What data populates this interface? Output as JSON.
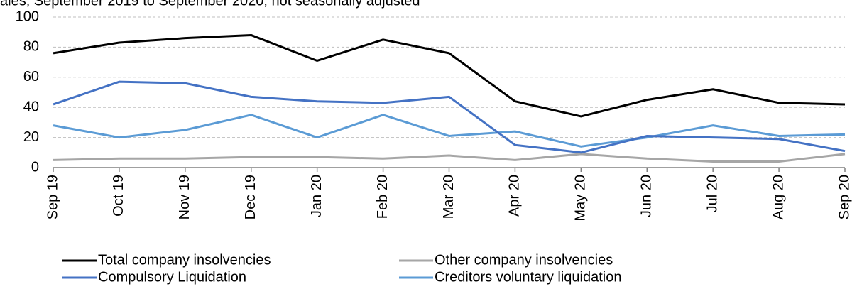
{
  "chart_data": {
    "type": "line",
    "subtitle": "ales, September 2019 to September 2020, not seasonally adjusted",
    "categories": [
      "Sep 19",
      "Oct 19",
      "Nov 19",
      "Dec 19",
      "Jan 20",
      "Feb 20",
      "Mar 20",
      "Apr 20",
      "May 20",
      "Jun 20",
      "Jul 20",
      "Aug 20",
      "Sep 20"
    ],
    "series": [
      {
        "name": "Total company insolvencies",
        "color": "#000000",
        "values": [
          76,
          83,
          86,
          88,
          71,
          85,
          76,
          44,
          34,
          45,
          52,
          43,
          42
        ]
      },
      {
        "name": "Other company insolvencies",
        "color": "#a6a6a6",
        "values": [
          5,
          6,
          6,
          7,
          7,
          6,
          8,
          5,
          9,
          6,
          4,
          4,
          9
        ]
      },
      {
        "name": "Compulsory Liquidation",
        "color": "#4472c4",
        "values": [
          42,
          57,
          56,
          47,
          44,
          43,
          47,
          15,
          10,
          21,
          20,
          19,
          11
        ]
      },
      {
        "name": "Creditors voluntary liquidation",
        "color": "#5b9bd5",
        "values": [
          28,
          20,
          25,
          35,
          20,
          35,
          21,
          24,
          14,
          20,
          28,
          21,
          22
        ]
      }
    ],
    "ylim": [
      0,
      100
    ],
    "yticks": [
      0,
      20,
      40,
      60,
      80,
      100
    ],
    "grid": true
  }
}
